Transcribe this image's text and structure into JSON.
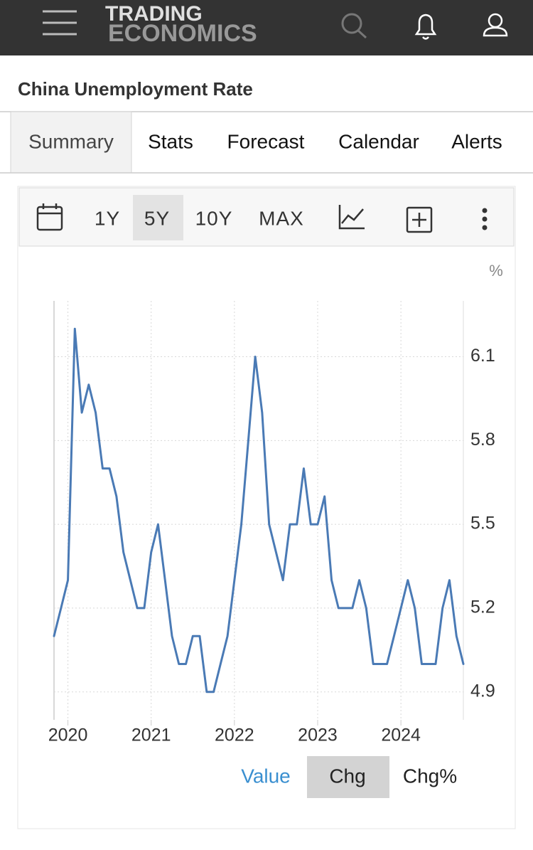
{
  "header": {
    "logo_line1": "TRADING",
    "logo_line2": "ECONOMICS"
  },
  "page_title": "China Unemployment Rate",
  "tabs": [
    "Summary",
    "Stats",
    "Forecast",
    "Calendar",
    "Alerts"
  ],
  "ranges": [
    "1Y",
    "5Y",
    "10Y",
    "MAX"
  ],
  "chart_data": {
    "type": "line",
    "unit_label": "%",
    "color": "#4a7ab5",
    "grid": true,
    "x": [
      2019.833,
      2019.917,
      2020,
      2020.083,
      2020.167,
      2020.25,
      2020.333,
      2020.417,
      2020.5,
      2020.583,
      2020.667,
      2020.75,
      2020.833,
      2020.917,
      2021,
      2021.083,
      2021.167,
      2021.25,
      2021.333,
      2021.417,
      2021.5,
      2021.583,
      2021.667,
      2021.75,
      2021.833,
      2021.917,
      2022,
      2022.083,
      2022.167,
      2022.25,
      2022.333,
      2022.417,
      2022.5,
      2022.583,
      2022.667,
      2022.75,
      2022.833,
      2022.917,
      2023,
      2023.083,
      2023.167,
      2023.25,
      2023.333,
      2023.417,
      2023.5,
      2023.583,
      2023.667,
      2023.75,
      2023.833,
      2023.917,
      2024,
      2024.083,
      2024.167,
      2024.25,
      2024.333,
      2024.417,
      2024.5,
      2024.583,
      2024.667,
      2024.75
    ],
    "values": [
      5.1,
      5.2,
      5.3,
      6.2,
      5.9,
      6.0,
      5.9,
      5.7,
      5.7,
      5.6,
      5.4,
      5.3,
      5.2,
      5.2,
      5.4,
      5.5,
      5.3,
      5.1,
      5.0,
      5.0,
      5.1,
      5.1,
      4.9,
      4.9,
      5.0,
      5.1,
      5.3,
      5.5,
      5.8,
      6.1,
      5.9,
      5.5,
      5.4,
      5.3,
      5.5,
      5.5,
      5.7,
      5.5,
      5.5,
      5.6,
      5.3,
      5.2,
      5.2,
      5.2,
      5.3,
      5.2,
      5.0,
      5.0,
      5.0,
      5.1,
      5.2,
      5.3,
      5.2,
      5.0,
      5.0,
      5.0,
      5.2,
      5.3,
      5.1,
      5.0
    ],
    "xlim": [
      2019.833,
      2024.75
    ],
    "xticks": [
      2020,
      2021,
      2022,
      2023,
      2024
    ],
    "ylim": [
      4.8,
      6.3
    ],
    "yticks": [
      4.9,
      5.2,
      5.5,
      5.8,
      6.1
    ]
  },
  "buttons": [
    "Value",
    "Chg",
    "Chg%"
  ]
}
